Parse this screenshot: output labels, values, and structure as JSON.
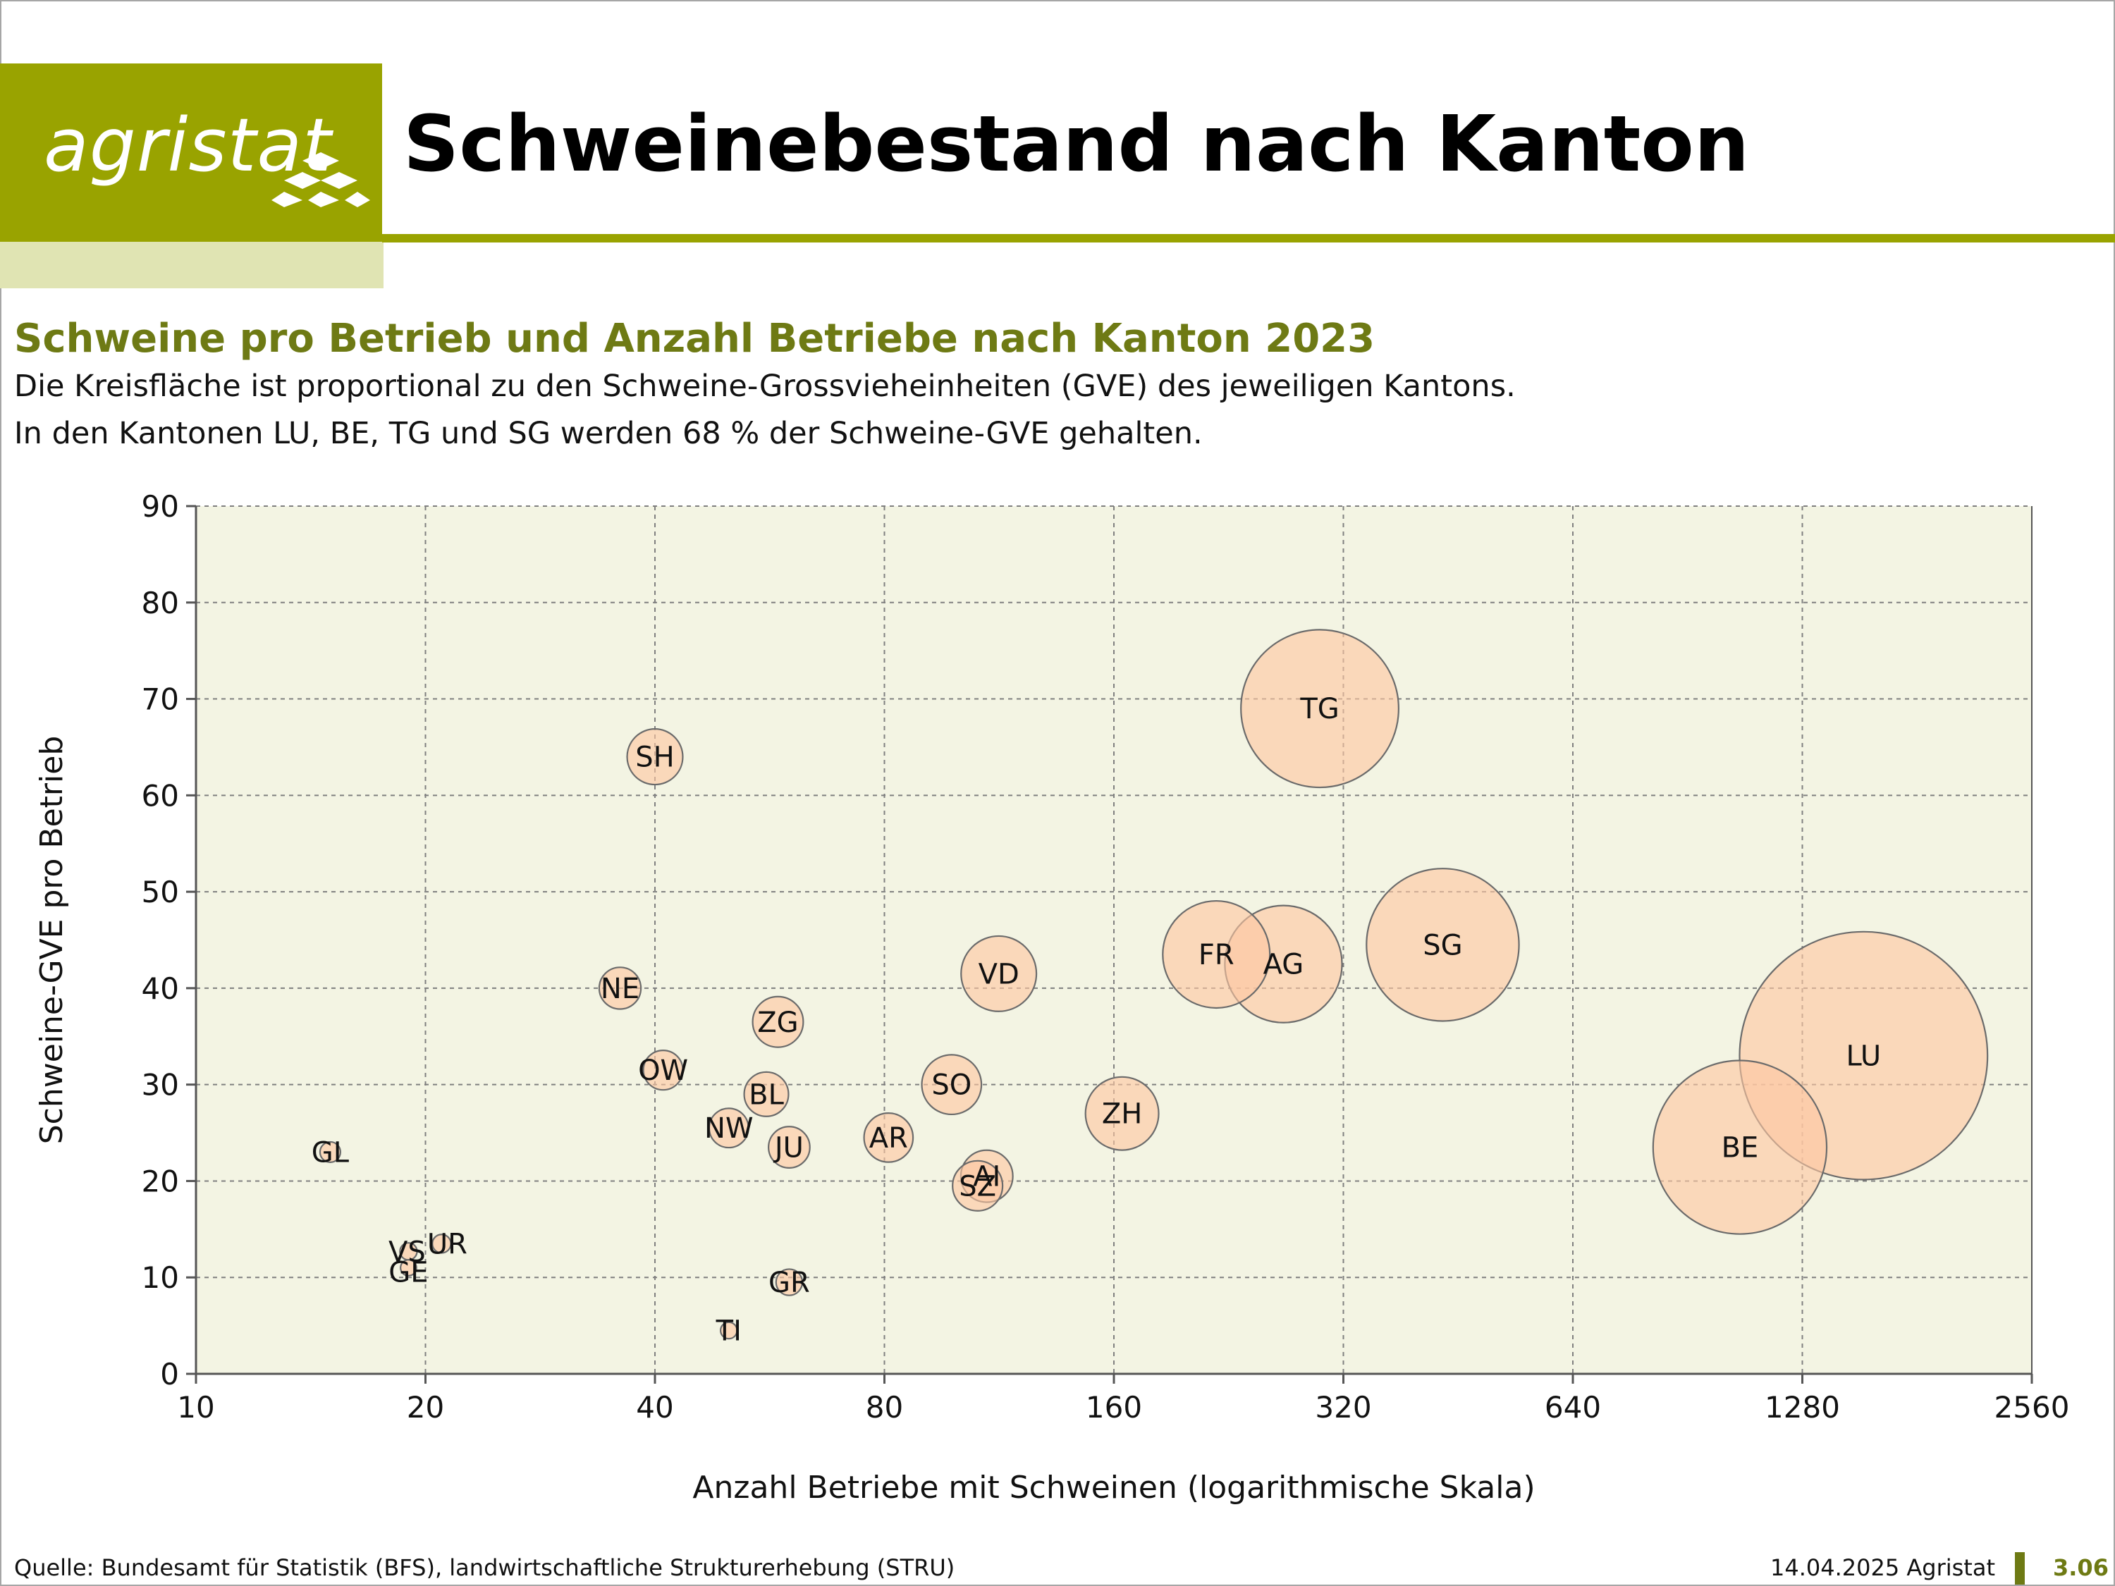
{
  "header": {
    "logo_text": "agristat",
    "title": "Schweinebestand nach Kanton"
  },
  "colors": {
    "brand_green": "#99a300",
    "brand_light": "#e0e4b3",
    "subtitle_green": "#6e7a14",
    "plot_background": "#f3f4e3",
    "bubble_fill": "#fdc7a1",
    "bubble_stroke": "#6b6b6b"
  },
  "chart_data": {
    "type": "scatter",
    "subtype": "bubble",
    "title": "Schweine pro Betrieb und Anzahl Betriebe nach Kanton 2023",
    "description": [
      "Die Kreisfläche ist proportional zu den Schweine-Grossvieheinheiten (GVE) des jeweiligen Kantons.",
      "In den Kantonen LU, BE, TG und SG werden 68 % der Schweine-GVE gehalten."
    ],
    "xlabel": "Anzahl Betriebe mit Schweinen (logarithmische Skala)",
    "ylabel": "Schweine-GVE pro Betrieb",
    "x_scale": "log2",
    "xlim": [
      10,
      2560
    ],
    "ylim": [
      0,
      90
    ],
    "x_ticks": [
      10,
      20,
      40,
      80,
      160,
      320,
      640,
      1280,
      2560
    ],
    "y_ticks": [
      0,
      10,
      20,
      30,
      40,
      50,
      60,
      70,
      80,
      90
    ],
    "grid": true,
    "size_encoding": "area proportional to Schweine-GVE (Betriebe × GVE pro Betrieb)",
    "points": [
      {
        "label": "GL",
        "x": 15,
        "y": 23
      },
      {
        "label": "VS",
        "x": 19,
        "y": 12.7
      },
      {
        "label": "GE",
        "x": 19,
        "y": 11
      },
      {
        "label": "UR",
        "x": 21,
        "y": 13.5
      },
      {
        "label": "SH",
        "x": 40,
        "y": 64
      },
      {
        "label": "NE",
        "x": 36,
        "y": 40
      },
      {
        "label": "OW",
        "x": 41,
        "y": 31.5
      },
      {
        "label": "ZG",
        "x": 58,
        "y": 36.5
      },
      {
        "label": "BL",
        "x": 56,
        "y": 29
      },
      {
        "label": "NW",
        "x": 50,
        "y": 25.5
      },
      {
        "label": "JU",
        "x": 60,
        "y": 23.5
      },
      {
        "label": "TI",
        "x": 50,
        "y": 4.5
      },
      {
        "label": "GR",
        "x": 60,
        "y": 9.5
      },
      {
        "label": "AR",
        "x": 81,
        "y": 24.5
      },
      {
        "label": "SO",
        "x": 98,
        "y": 30
      },
      {
        "label": "AI",
        "x": 109,
        "y": 20.5
      },
      {
        "label": "SZ",
        "x": 106,
        "y": 19.5
      },
      {
        "label": "VD",
        "x": 113,
        "y": 41.5
      },
      {
        "label": "ZH",
        "x": 164,
        "y": 27
      },
      {
        "label": "FR",
        "x": 218,
        "y": 43.5
      },
      {
        "label": "AG",
        "x": 267,
        "y": 42.5
      },
      {
        "label": "TG",
        "x": 298,
        "y": 69
      },
      {
        "label": "SG",
        "x": 432,
        "y": 44.5
      },
      {
        "label": "BE",
        "x": 1060,
        "y": 23.5
      },
      {
        "label": "LU",
        "x": 1540,
        "y": 33
      }
    ]
  },
  "footer": {
    "source": "Quelle: Bundesamt für Statistik (BFS), landwirtschaftliche Strukturerhebung (STRU)",
    "date": "14.04.2025 Agristat",
    "page": "3.06"
  }
}
